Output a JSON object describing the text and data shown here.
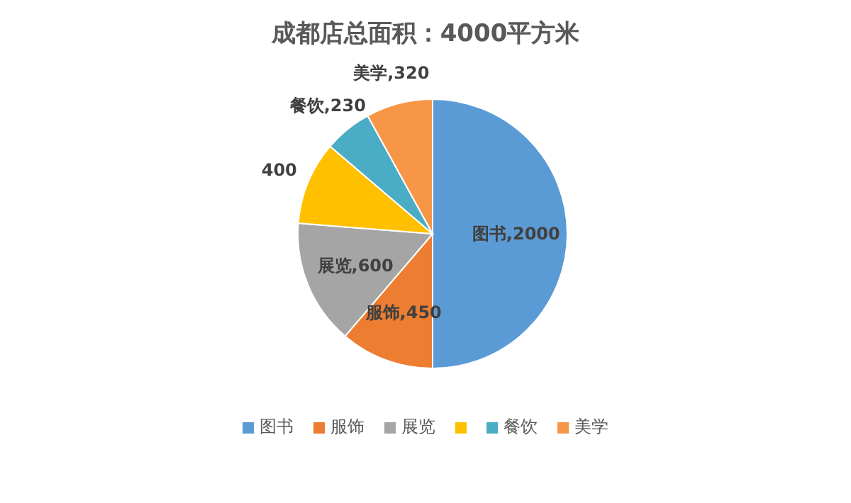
{
  "chart_data": {
    "type": "pie",
    "title": "成都店总面积：4000平方米",
    "categories": [
      "图书",
      "服饰",
      "展览",
      null,
      "餐饮",
      "美学"
    ],
    "values": [
      2000,
      450,
      600,
      400,
      230,
      320
    ],
    "value_labels": [
      "图书,2000",
      "服饰,450",
      "展览,600",
      "400",
      "餐饮,230",
      "美学,320"
    ],
    "colors": [
      "#5b9bd5",
      "#ed7d31",
      "#a5a5a5",
      "#ffc000",
      "#4bacc6",
      "#f79646"
    ],
    "legend": "bottom"
  }
}
